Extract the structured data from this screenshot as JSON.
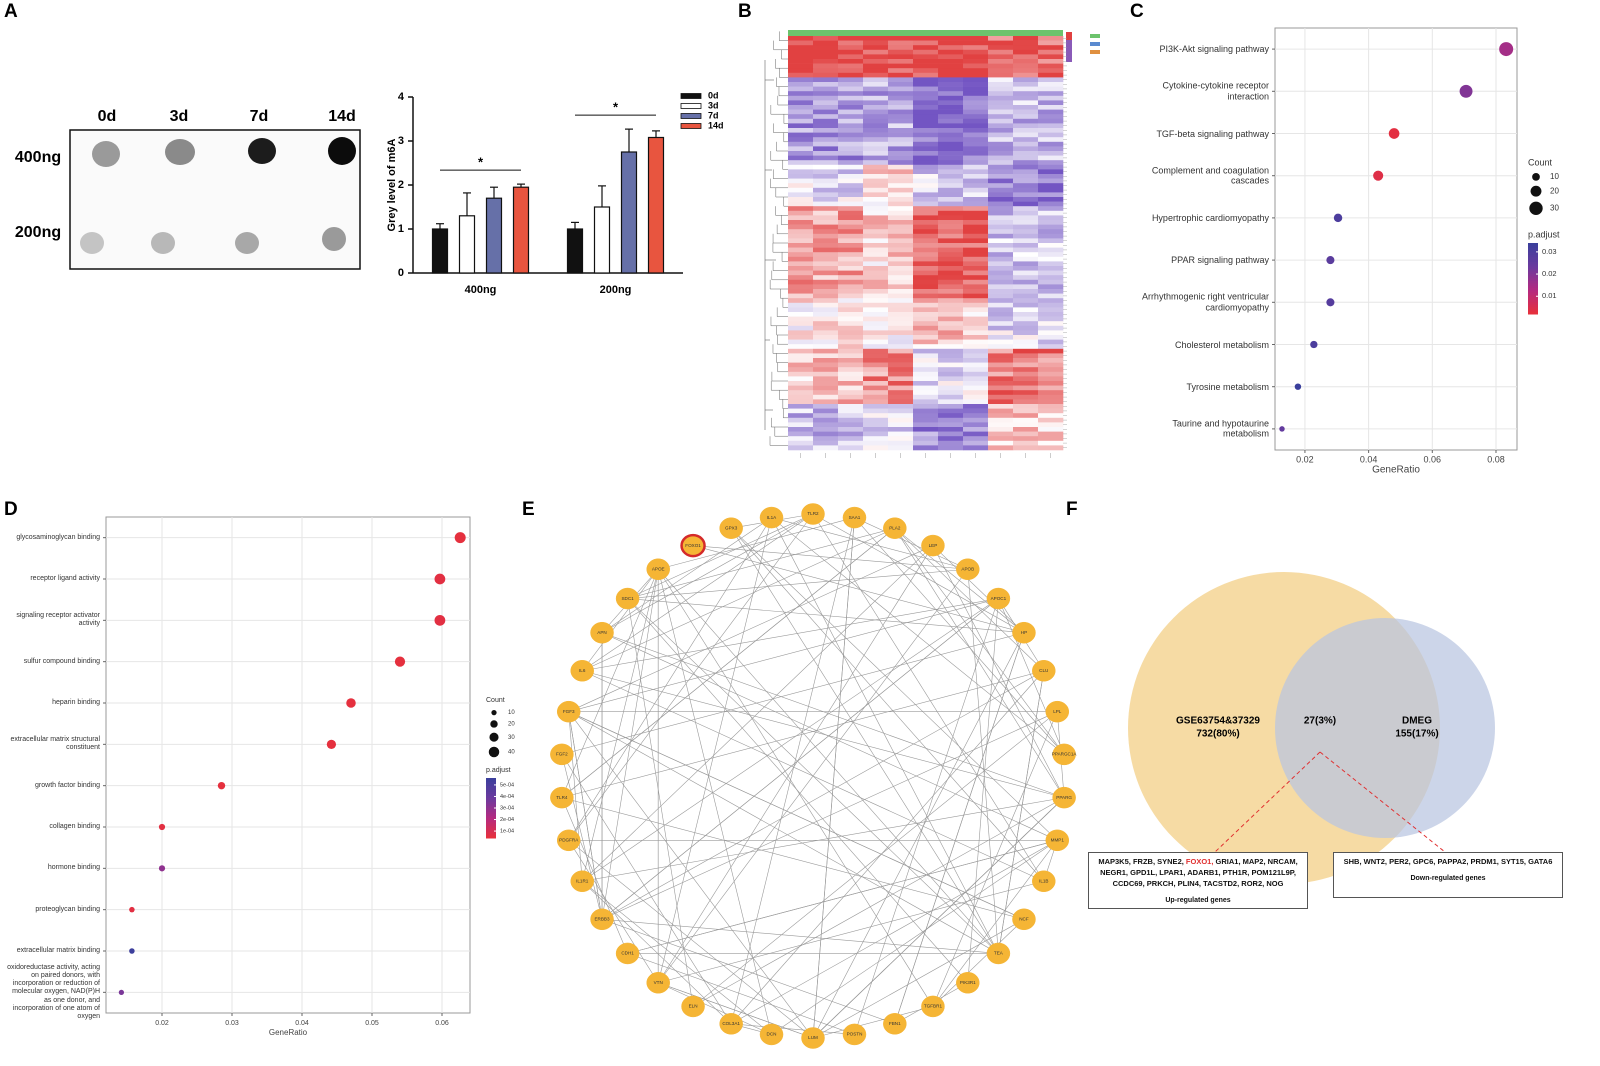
{
  "panel_labels": [
    "A",
    "B",
    "C",
    "D",
    "E",
    "F"
  ],
  "dot_blot": {
    "columns": [
      "0d",
      "3d",
      "7d",
      "14d"
    ],
    "rows": [
      "400ng",
      "200ng"
    ]
  },
  "chart_data": [
    {
      "type": "bar",
      "ylabel": "Grey level of m6A",
      "categories": [
        "400ng",
        "200ng"
      ],
      "series": [
        {
          "name": "0d",
          "color": "#111111",
          "values": [
            1.0,
            1.0
          ],
          "errors": [
            0.12,
            0.15
          ]
        },
        {
          "name": "3d",
          "color": "#ffffff",
          "values": [
            1.3,
            1.5
          ],
          "errors": [
            0.52,
            0.48
          ]
        },
        {
          "name": "7d",
          "color": "#6670a8",
          "values": [
            1.7,
            2.75
          ],
          "errors": [
            0.25,
            0.52
          ]
        },
        {
          "name": "14d",
          "color": "#e8553f",
          "values": [
            1.95,
            3.08
          ],
          "errors": [
            0.07,
            0.15
          ]
        }
      ],
      "ylim": [
        0,
        4
      ],
      "yticks": [
        0,
        1,
        2,
        3,
        4
      ],
      "annotations": [
        {
          "label": "*"
        },
        {
          "label": "*"
        }
      ]
    },
    {
      "type": "dot",
      "xlabel": "GeneRatio",
      "categories": [
        "PI3K-Akt signaling pathway",
        "Cytokine-cytokine receptor interaction",
        "TGF-beta signaling pathway",
        "Complement and coagulation cascades",
        "Hypertrophic cardiomyopathy",
        "PPAR signaling pathway",
        "Arrhythmogenic right ventricular cardiomyopathy",
        "Cholesterol metabolism",
        "Tyrosine metabolism",
        "Taurine and hypotaurine metabolism"
      ],
      "values": [
        0.0832,
        0.0706,
        0.048,
        0.043,
        0.0304,
        0.028,
        0.028,
        0.0228,
        0.0178,
        0.0128
      ],
      "counts": [
        33,
        28,
        19,
        17,
        12,
        11,
        11,
        9,
        7,
        5
      ],
      "p_adjust": [
        0.015,
        0.02,
        0.003,
        0.004,
        0.03,
        0.027,
        0.028,
        0.03,
        0.034,
        0.025
      ],
      "xlim": [
        0.0106,
        0.0866
      ],
      "xticks": [
        0.02,
        0.04,
        0.06,
        0.08
      ],
      "grid": true,
      "size_legend": {
        "title": "Count",
        "values": [
          10,
          20,
          30
        ]
      },
      "color_legend": {
        "title": "p.adjust",
        "lim": [
          0.002,
          0.034
        ],
        "ticks": [
          0.03,
          0.02,
          0.01
        ],
        "colors": [
          "#e8303a",
          "#b42a80",
          "#6a3a9e",
          "#3a3f9c"
        ]
      }
    },
    {
      "type": "dot",
      "xlabel": "GeneRatio",
      "categories": [
        "glycosaminoglycan binding",
        "receptor ligand activity",
        "signaling receptor activator activity",
        "sulfur compound binding",
        "heparin binding",
        "extracellular matrix structural constituent",
        "growth factor binding",
        "collagen binding",
        "hormone binding",
        "proteoglycan binding",
        "extracellular matrix binding",
        "oxidoreductase activity, acting on paired donors, with incorporation or reduction of molecular oxygen, NAD(P)H as one donor, and incorporation of one atom of oxygen"
      ],
      "values": [
        0.0626,
        0.0597,
        0.0597,
        0.054,
        0.047,
        0.0442,
        0.0285,
        0.02,
        0.02,
        0.0157,
        0.0157,
        0.0142
      ],
      "counts": [
        44,
        42,
        42,
        38,
        33,
        31,
        20,
        14,
        14,
        11,
        11,
        10
      ],
      "p_adjust": [
        5e-05,
        6e-05,
        6e-05,
        5e-05,
        5e-05,
        5e-05,
        5e-05,
        6e-05,
        0.0003,
        6e-05,
        0.00055,
        0.00035
      ],
      "xlim": [
        0.012,
        0.064
      ],
      "xticks": [
        0.02,
        0.03,
        0.04,
        0.05,
        0.06
      ],
      "grid": true,
      "size_legend": {
        "title": "Count",
        "values": [
          10,
          20,
          30,
          40
        ]
      },
      "color_legend": {
        "title": "p.adjust",
        "lim": [
          4e-05,
          0.00056
        ],
        "ticks": [
          {
            "value": 0.0005,
            "label": "5e-04"
          },
          {
            "value": 0.0004,
            "label": "4e-04"
          },
          {
            "value": 0.0003,
            "label": "3e-04"
          },
          {
            "value": 0.0002,
            "label": "2e-04"
          },
          {
            "value": 0.0001,
            "label": "1e-04"
          }
        ],
        "colors": [
          "#e8303a",
          "#b42a80",
          "#6a3a9e",
          "#3a3f9c"
        ]
      }
    }
  ],
  "network": {
    "node_color": "#f5b535",
    "highlight_color": "#d42a2a",
    "nodes": [
      {
        "label": "TLR2"
      },
      {
        "label": "SAA1"
      },
      {
        "label": "PLA2"
      },
      {
        "label": "LEP"
      },
      {
        "label": "APOB"
      },
      {
        "label": "APOC1"
      },
      {
        "label": "HP"
      },
      {
        "label": "CLU"
      },
      {
        "label": "LPL"
      },
      {
        "label": "PPARGC1A"
      },
      {
        "label": "PPARG"
      },
      {
        "label": "MMP1"
      },
      {
        "label": "IL1B"
      },
      {
        "label": "NCF"
      },
      {
        "label": "TEA"
      },
      {
        "label": "PIK3R1"
      },
      {
        "label": "TGFBR1"
      },
      {
        "label": "FBN1"
      },
      {
        "label": "POSTN"
      },
      {
        "label": "LUM"
      },
      {
        "label": "DCN"
      },
      {
        "label": "COL3A1"
      },
      {
        "label": "ELN"
      },
      {
        "label": "VTN"
      },
      {
        "label": "CDH1"
      },
      {
        "label": "ERBB3"
      },
      {
        "label": "IL1R1"
      },
      {
        "label": "PDGFRA"
      },
      {
        "label": "TLR4"
      },
      {
        "label": "FGF2"
      },
      {
        "label": "FGF3"
      },
      {
        "label": "IL6"
      },
      {
        "label": "APN"
      },
      {
        "label": "SDC1"
      },
      {
        "label": "APOE"
      },
      {
        "label": "FOXO1",
        "highlight": true
      },
      {
        "label": "GPX3"
      },
      {
        "label": "IL1A"
      }
    ]
  },
  "venn": {
    "left": {
      "name": "GSE63754&37329",
      "count": "732(80%)",
      "color": "#f5d79a"
    },
    "right": {
      "name": "DMEG",
      "count": "155(17%)",
      "color": "#b9c5e0"
    },
    "overlap": "27(3%)",
    "up": {
      "title": "Up-regulated genes",
      "genes": [
        {
          "text": "MAP3K5,"
        },
        {
          "text": "FRZB,"
        },
        {
          "text": "SYNE2,"
        },
        {
          "text": "FOXO1,",
          "color": "#e03030"
        },
        {
          "text": "GRIA1,"
        },
        {
          "text": "MAP2,"
        },
        {
          "text": "NRCAM,"
        },
        {
          "text": "NEGR1,"
        },
        {
          "text": "GPD1L,"
        },
        {
          "text": "LPAR1,"
        },
        {
          "text": "ADARB1,"
        },
        {
          "text": "PTH1R,"
        },
        {
          "text": "POM121L9P,"
        },
        {
          "text": "CCDC69,"
        },
        {
          "text": "PRKCH,"
        },
        {
          "text": "PLIN4,"
        },
        {
          "text": "TACSTD2,"
        },
        {
          "text": "ROR2,"
        },
        {
          "text": "NOG"
        }
      ]
    },
    "down": {
      "title": "Down-regulated genes",
      "genes": [
        {
          "text": "SHB,"
        },
        {
          "text": "WNT2,"
        },
        {
          "text": "PER2,"
        },
        {
          "text": "GPC6,"
        },
        {
          "text": "PAPPA2,"
        },
        {
          "text": "PRDM1,"
        },
        {
          "text": "SYT15,"
        },
        {
          "text": "GATA6"
        }
      ]
    }
  }
}
